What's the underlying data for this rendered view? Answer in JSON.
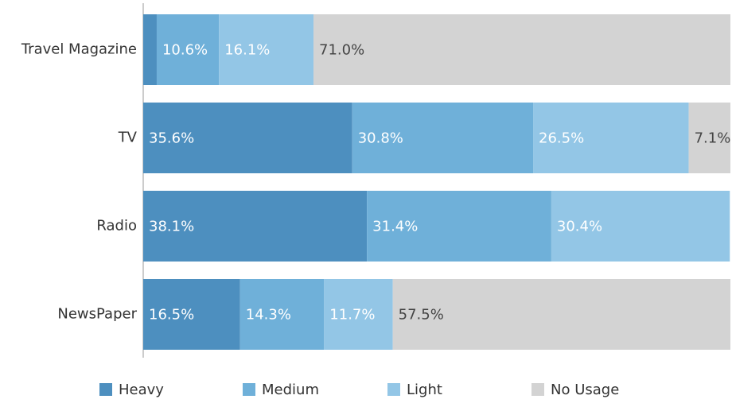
{
  "chart_data": {
    "type": "stacked-bar-horizontal",
    "categories": [
      "Travel Magazine",
      "TV",
      "Radio",
      "NewsPaper"
    ],
    "xlim": [
      0,
      100
    ],
    "legend": "bottom",
    "series": [
      {
        "name": "Heavy",
        "color": "#4d8fbf",
        "values": [
          2.3,
          35.6,
          38.1,
          16.5
        ],
        "value_labels": [
          null,
          "35.6%",
          "38.1%",
          "16.5%"
        ]
      },
      {
        "name": "Medium",
        "color": "#6fb0d9",
        "values": [
          10.6,
          30.8,
          31.4,
          14.3
        ],
        "value_labels": [
          "10.6%",
          "30.8%",
          "31.4%",
          "14.3%"
        ]
      },
      {
        "name": "Light",
        "color": "#93c6e6",
        "values": [
          16.1,
          26.5,
          30.4,
          11.7
        ],
        "value_labels": [
          "16.1%",
          "26.5%",
          "30.4%",
          "11.7%"
        ]
      },
      {
        "name": "No Usage",
        "color": "#d3d3d3",
        "values": [
          71.0,
          7.1,
          0,
          57.5
        ],
        "value_labels": [
          "71.0%",
          "7.1%",
          null,
          "57.5%"
        ]
      }
    ]
  }
}
